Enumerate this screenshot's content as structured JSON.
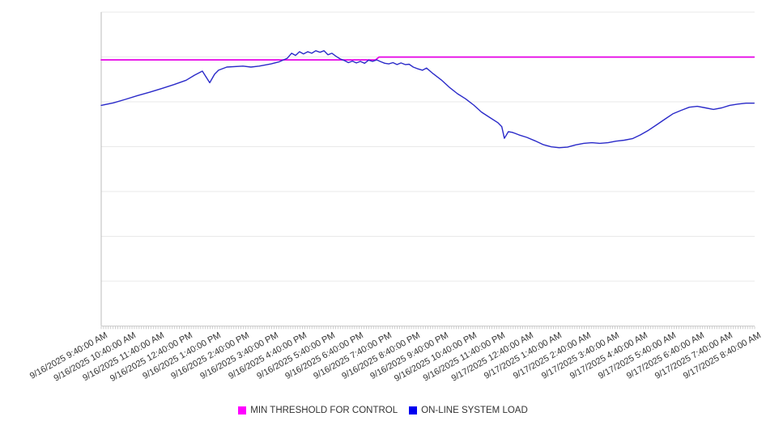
{
  "chart_data": {
    "type": "line",
    "title": "",
    "x_axis": {
      "labels": [
        "9/16/2025 9:40:00 AM",
        "9/16/2025 10:40:00 AM",
        "9/16/2025 11:40:00 AM",
        "9/16/2025 12:40:00 PM",
        "9/16/2025 1:40:00 PM",
        "9/16/2025 2:40:00 PM",
        "9/16/2025 3:40:00 PM",
        "9/16/2025 4:40:00 PM",
        "9/16/2025 5:40:00 PM",
        "9/16/2025 6:40:00 PM",
        "9/16/2025 7:40:00 PM",
        "9/16/2025 8:40:00 PM",
        "9/16/2025 9:40:00 PM",
        "9/16/2025 10:40:00 PM",
        "9/16/2025 11:40:00 PM",
        "9/17/2025 12:40:00 AM",
        "9/17/2025 1:40:00 AM",
        "9/17/2025 2:40:00 AM",
        "9/17/2025 3:40:00 AM",
        "9/17/2025 4:40:00 AM",
        "9/17/2025 5:40:00 AM",
        "9/17/2025 6:40:00 AM",
        "9/17/2025 7:40:00 AM",
        "9/17/2025 8:40:00 AM"
      ],
      "major_tick_interval": "1 hour",
      "minor_tick_interval_minutes": 5,
      "span_hours": 23
    },
    "y_axis": {
      "tick_labels_visible": false,
      "ylim": [
        0,
        100
      ],
      "note": "no numeric y labels shown in image; values normalized 0-100 of plot height",
      "gridlines": "horizontal, 7 light lines above baseline"
    },
    "legend_position": "bottom-center",
    "series": [
      {
        "name": "MIN THRESHOLD FOR CONTROL",
        "color": "#E600E6",
        "shape": "step-line",
        "points": [
          [
            0,
            84.8
          ],
          [
            9.66,
            84.8
          ],
          [
            9.78,
            85.7
          ],
          [
            22.98,
            85.7
          ]
        ]
      },
      {
        "name": "ON-LINE SYSTEM LOAD",
        "color": "#2A2AC9",
        "shape": "line",
        "points": [
          [
            0,
            70.3
          ],
          [
            0.43,
            71.1
          ],
          [
            0.85,
            72.2
          ],
          [
            1.28,
            73.4
          ],
          [
            1.71,
            74.5
          ],
          [
            2.14,
            75.7
          ],
          [
            2.56,
            76.9
          ],
          [
            2.99,
            78.3
          ],
          [
            3.28,
            79.9
          ],
          [
            3.56,
            81.2
          ],
          [
            3.82,
            77.5
          ],
          [
            3.99,
            80.2
          ],
          [
            4.13,
            81.5
          ],
          [
            4.42,
            82.5
          ],
          [
            4.99,
            82.8
          ],
          [
            5.27,
            82.5
          ],
          [
            5.56,
            82.8
          ],
          [
            5.98,
            83.5
          ],
          [
            6.27,
            84.2
          ],
          [
            6.55,
            85.3
          ],
          [
            6.7,
            86.9
          ],
          [
            6.84,
            86.2
          ],
          [
            6.98,
            87.4
          ],
          [
            7.12,
            86.7
          ],
          [
            7.27,
            87.4
          ],
          [
            7.41,
            86.9
          ],
          [
            7.55,
            87.7
          ],
          [
            7.7,
            87.2
          ],
          [
            7.84,
            87.7
          ],
          [
            7.98,
            86.4
          ],
          [
            8.12,
            86.9
          ],
          [
            8.27,
            85.9
          ],
          [
            8.41,
            85.1
          ],
          [
            8.55,
            84.6
          ],
          [
            8.7,
            83.9
          ],
          [
            8.84,
            84.4
          ],
          [
            8.98,
            83.8
          ],
          [
            9.12,
            84.3
          ],
          [
            9.27,
            83.7
          ],
          [
            9.41,
            84.7
          ],
          [
            9.55,
            84.3
          ],
          [
            9.7,
            84.8
          ],
          [
            9.84,
            84.2
          ],
          [
            9.98,
            83.7
          ],
          [
            10.12,
            83.5
          ],
          [
            10.27,
            83.9
          ],
          [
            10.41,
            83.3
          ],
          [
            10.55,
            83.8
          ],
          [
            10.7,
            83.3
          ],
          [
            10.84,
            83.4
          ],
          [
            10.98,
            82.5
          ],
          [
            11.12,
            82.0
          ],
          [
            11.31,
            81.5
          ],
          [
            11.45,
            82.2
          ],
          [
            11.68,
            80.4
          ],
          [
            11.97,
            78.4
          ],
          [
            12.25,
            76.1
          ],
          [
            12.54,
            74.0
          ],
          [
            12.82,
            72.4
          ],
          [
            13.11,
            70.4
          ],
          [
            13.39,
            68.1
          ],
          [
            13.68,
            66.4
          ],
          [
            13.96,
            64.8
          ],
          [
            14.1,
            63.5
          ],
          [
            14.19,
            59.8
          ],
          [
            14.33,
            61.9
          ],
          [
            14.47,
            61.7
          ],
          [
            14.7,
            60.9
          ],
          [
            14.98,
            60.1
          ],
          [
            15.27,
            59.0
          ],
          [
            15.55,
            57.8
          ],
          [
            15.84,
            57.1
          ],
          [
            16.12,
            56.8
          ],
          [
            16.41,
            57.0
          ],
          [
            16.7,
            57.7
          ],
          [
            16.98,
            58.2
          ],
          [
            17.27,
            58.4
          ],
          [
            17.55,
            58.2
          ],
          [
            17.84,
            58.4
          ],
          [
            18.12,
            58.9
          ],
          [
            18.41,
            59.2
          ],
          [
            18.7,
            59.7
          ],
          [
            18.98,
            60.9
          ],
          [
            19.27,
            62.4
          ],
          [
            19.55,
            64.1
          ],
          [
            19.84,
            65.9
          ],
          [
            20.12,
            67.6
          ],
          [
            20.41,
            68.7
          ],
          [
            20.7,
            69.7
          ],
          [
            20.98,
            70.0
          ],
          [
            21.27,
            69.5
          ],
          [
            21.55,
            69.0
          ],
          [
            21.84,
            69.5
          ],
          [
            22.12,
            70.3
          ],
          [
            22.41,
            70.7
          ],
          [
            22.7,
            71.0
          ],
          [
            22.98,
            71.0
          ]
        ]
      }
    ]
  },
  "legend": {
    "items": [
      {
        "label": "MIN THRESHOLD FOR CONTROL",
        "color": "#FF00FF"
      },
      {
        "label": "ON-LINE SYSTEM LOAD",
        "color": "#0000F0"
      }
    ]
  },
  "colors": {
    "background": "#FFFFFF",
    "gridline": "#E9E9E9",
    "axis_left": "#BBBBBB",
    "axis_bottom": "#CCCCCC",
    "tick": "#CCCCCC",
    "label_text": "#333333"
  }
}
